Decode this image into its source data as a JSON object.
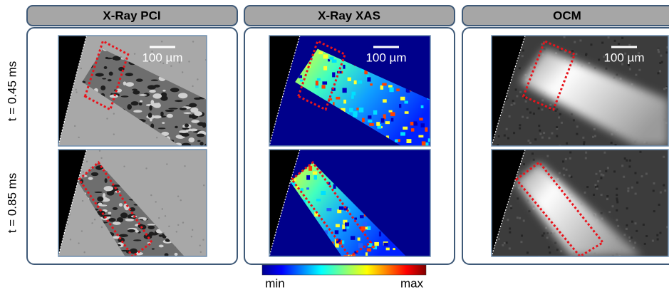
{
  "panels": [
    {
      "title": "X-Ray PCI",
      "scale_bar": "100 µm"
    },
    {
      "title": "X-Ray XAS",
      "scale_bar": "100 µm"
    },
    {
      "title": "OCM",
      "scale_bar": "100 µm"
    }
  ],
  "rows": [
    {
      "label": "t = 0.45 ms"
    },
    {
      "label": "t = 0.85 ms"
    }
  ],
  "colorbar": {
    "min_label": "min",
    "max_label": "max"
  }
}
